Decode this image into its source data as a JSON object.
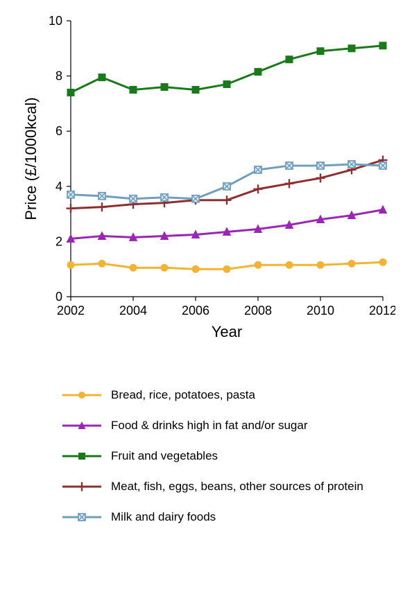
{
  "chart": {
    "type": "line",
    "xlabel": "Year",
    "ylabel": "Price (£/1000kcal)",
    "label_fontsize": 22,
    "tick_fontsize": 18,
    "background_color": "#ffffff",
    "axis_color": "#000000",
    "line_width": 3,
    "marker_size": 5,
    "xlim": [
      2002,
      2012
    ],
    "ylim": [
      0,
      10
    ],
    "xtick_step": 2,
    "ytick_step": 2,
    "x": [
      2002,
      2003,
      2004,
      2005,
      2006,
      2007,
      2008,
      2009,
      2010,
      2011,
      2012
    ],
    "series": [
      {
        "key": "bread",
        "label": "Bread, rice, potatoes, pasta",
        "color": "#f2b333",
        "marker": "circle",
        "y": [
          1.15,
          1.2,
          1.05,
          1.05,
          1.0,
          1.0,
          1.15,
          1.15,
          1.15,
          1.2,
          1.25
        ]
      },
      {
        "key": "fat_sugar",
        "label": "Food & drinks high in fat and/or sugar",
        "color": "#9b26b6",
        "marker": "triangle",
        "y": [
          2.1,
          2.2,
          2.15,
          2.2,
          2.25,
          2.35,
          2.45,
          2.6,
          2.8,
          2.95,
          3.15
        ]
      },
      {
        "key": "fruit_veg",
        "label": "Fruit and vegetables",
        "color": "#1a7a1a",
        "marker": "square",
        "y": [
          7.4,
          7.95,
          7.5,
          7.6,
          7.5,
          7.7,
          8.15,
          8.6,
          8.9,
          9.0,
          9.1
        ]
      },
      {
        "key": "meat",
        "label": "Meat, fish, eggs, beans, other sources of protein",
        "color": "#8e2e2e",
        "marker": "plus",
        "y": [
          3.2,
          3.25,
          3.35,
          3.4,
          3.5,
          3.5,
          3.9,
          4.1,
          4.3,
          4.6,
          4.95
        ]
      },
      {
        "key": "milk",
        "label": "Milk and dairy foods",
        "color": "#6f9fbf",
        "marker": "x-square",
        "y": [
          3.7,
          3.65,
          3.55,
          3.6,
          3.55,
          4.0,
          4.6,
          4.75,
          4.75,
          4.8,
          4.75
        ]
      }
    ]
  }
}
